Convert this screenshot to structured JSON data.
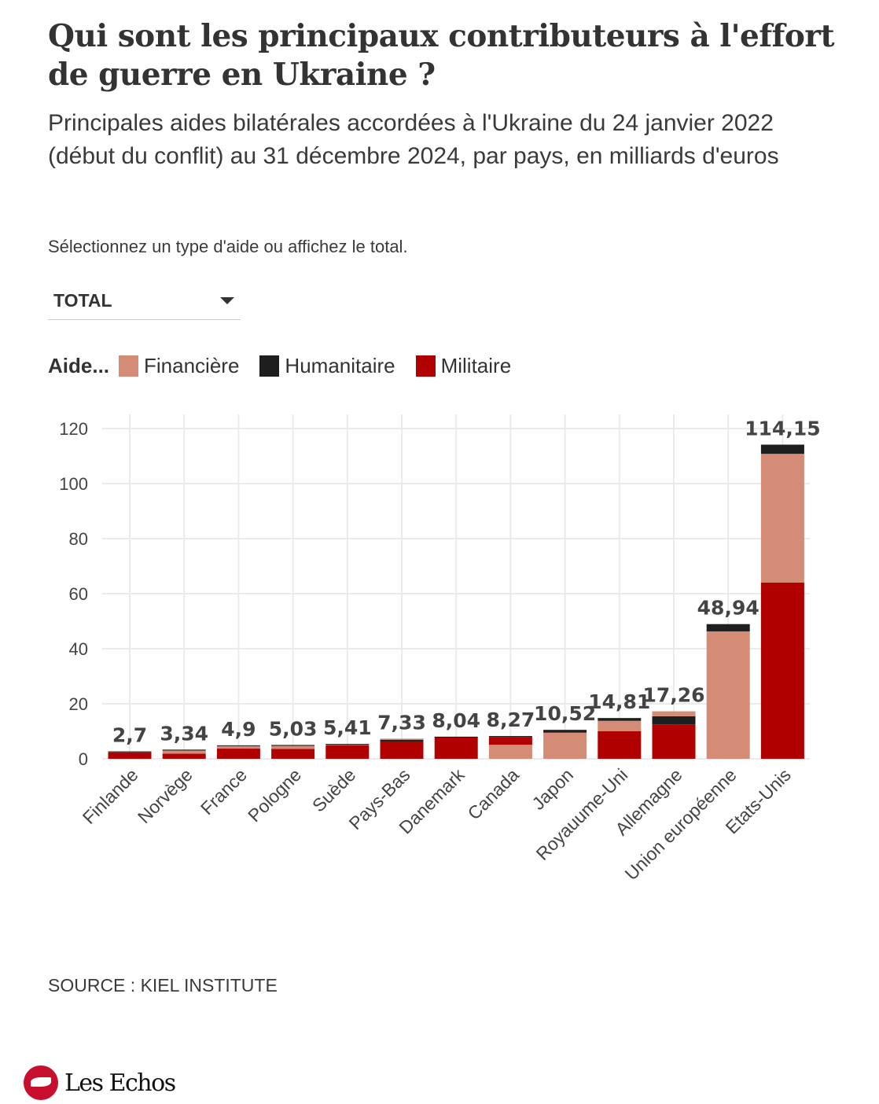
{
  "header": {
    "title": "Qui sont les principaux contributeurs à l'effort de guerre en Ukraine ?",
    "subtitle": "Principales aides bilatérales accordées à l'Ukraine du 24 janvier 2022 (début du conflit) au 31 décembre 2024, par pays, en milliards d'euros"
  },
  "controls": {
    "instruction": "Sélectionnez un type d'aide ou affichez le total.",
    "dropdown_value": "TOTAL"
  },
  "legend": {
    "title": "Aide...",
    "items": [
      {
        "label": "Financière",
        "color": "#d48c76"
      },
      {
        "label": "Humanitaire",
        "color": "#1e1e1e"
      },
      {
        "label": "Militaire",
        "color": "#b10000"
      }
    ]
  },
  "footer": {
    "source": "SOURCE : KIEL INSTITUTE",
    "brand": "Les Echos"
  },
  "chart_data": {
    "type": "bar",
    "stacked": true,
    "title": "Qui sont les principaux contributeurs à l'effort de guerre en Ukraine ?",
    "xlabel": "",
    "ylabel": "",
    "ylim": [
      0,
      120
    ],
    "yticks": [
      0,
      20,
      40,
      60,
      80,
      100,
      120
    ],
    "grid": true,
    "legend_position": "top-left",
    "categories": [
      "Finlande",
      "Norvège",
      "France",
      "Pologne",
      "Suède",
      "Pays-Bas",
      "Danemark",
      "Canada",
      "Japon",
      "Royauume-Uni",
      "Allemagne",
      "Union européenne",
      "Etats-Unis"
    ],
    "totals": [
      2.7,
      3.34,
      4.9,
      5.03,
      5.41,
      7.33,
      8.04,
      8.27,
      10.52,
      14.81,
      17.26,
      48.94,
      114.15
    ],
    "total_labels": [
      "2,7",
      "3,34",
      "4,9",
      "5,03",
      "5,41",
      "7,33",
      "8,04",
      "8,27",
      "10,52",
      "14,81",
      "17,26",
      "48,94",
      "114,15"
    ],
    "series": [
      {
        "name": "Financière",
        "color": "#d48c76",
        "values": [
          0.1,
          1.1,
          0.9,
          1.1,
          0.2,
          0.4,
          0.0,
          5.1,
          9.5,
          3.8,
          1.8,
          46.3,
          46.8
        ]
      },
      {
        "name": "Humanitaire",
        "color": "#1e1e1e",
        "values": [
          0.1,
          0.34,
          0.3,
          0.33,
          0.21,
          0.63,
          0.14,
          0.37,
          1.02,
          1.01,
          2.96,
          2.64,
          3.35
        ]
      },
      {
        "name": "Militaire",
        "color": "#b10000",
        "values": [
          2.5,
          1.9,
          3.7,
          3.6,
          5.0,
          6.3,
          7.9,
          2.8,
          0.0,
          10.0,
          12.5,
          0.0,
          64.0
        ]
      }
    ],
    "stack_order": [
      [
        "Militaire",
        "Financière",
        "Humanitaire"
      ],
      [
        "Militaire",
        "Financière",
        "Humanitaire"
      ],
      [
        "Militaire",
        "Financière",
        "Humanitaire"
      ],
      [
        "Militaire",
        "Financière",
        "Humanitaire"
      ],
      [
        "Militaire",
        "Financière",
        "Humanitaire"
      ],
      [
        "Militaire",
        "Humanitaire",
        "Financière"
      ],
      [
        "Militaire",
        "Humanitaire",
        "Financière"
      ],
      [
        "Financière",
        "Militaire",
        "Humanitaire"
      ],
      [
        "Financière",
        "Militaire",
        "Humanitaire"
      ],
      [
        "Militaire",
        "Financière",
        "Humanitaire"
      ],
      [
        "Militaire",
        "Humanitaire",
        "Financière"
      ],
      [
        "Militaire",
        "Financière",
        "Humanitaire"
      ],
      [
        "Militaire",
        "Financière",
        "Humanitaire"
      ]
    ]
  }
}
